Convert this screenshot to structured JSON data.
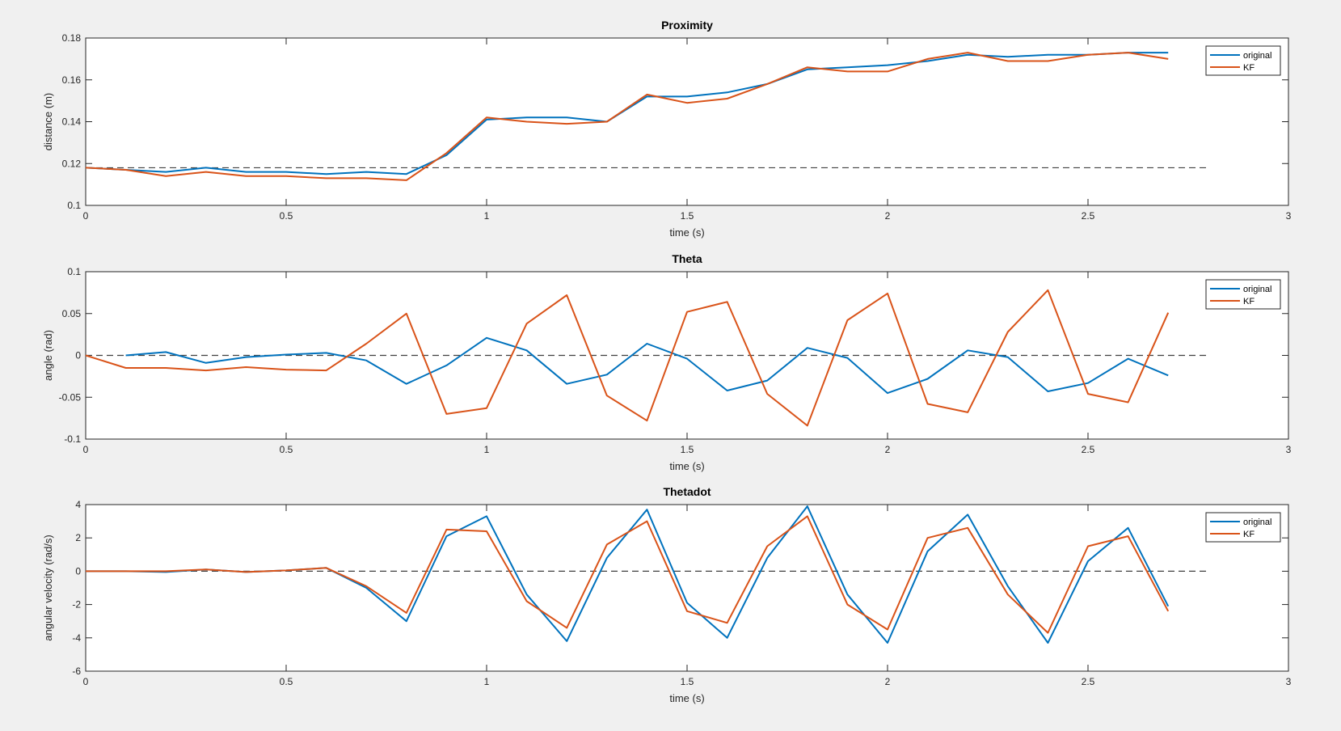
{
  "chart_data": [
    {
      "type": "line",
      "title": "Proximity",
      "xlabel": "time (s)",
      "ylabel": "distance (m)",
      "xlim": [
        0,
        3
      ],
      "ylim": [
        0.1,
        0.18
      ],
      "xticks": [
        "0",
        "0.5",
        "1",
        "1.5",
        "2",
        "2.5",
        "3"
      ],
      "yticks": [
        "0.1",
        "0.12",
        "0.14",
        "0.16",
        "0.18"
      ],
      "grid": false,
      "legend_position": "top-right",
      "reference_line": {
        "y": 0.118,
        "x_range": [
          0,
          2.8
        ],
        "style": "dashed",
        "color": "#404040"
      },
      "series": [
        {
          "name": "original",
          "color": "#0072bd",
          "x": [
            0,
            0.1,
            0.2,
            0.3,
            0.4,
            0.5,
            0.6,
            0.7,
            0.8,
            0.9,
            1.0,
            1.1,
            1.2,
            1.3,
            1.4,
            1.5,
            1.6,
            1.7,
            1.8,
            1.9,
            2.0,
            2.1,
            2.2,
            2.3,
            2.4,
            2.5,
            2.6,
            2.7
          ],
          "y": [
            0.118,
            0.117,
            0.116,
            0.118,
            0.116,
            0.116,
            0.115,
            0.116,
            0.115,
            0.124,
            0.141,
            0.142,
            0.142,
            0.14,
            0.152,
            0.152,
            0.154,
            0.158,
            0.165,
            0.166,
            0.167,
            0.169,
            0.172,
            0.171,
            0.172,
            0.172,
            0.173,
            0.173
          ]
        },
        {
          "name": "KF",
          "color": "#d95319",
          "x": [
            0,
            0.1,
            0.2,
            0.3,
            0.4,
            0.5,
            0.6,
            0.7,
            0.8,
            0.9,
            1.0,
            1.1,
            1.2,
            1.3,
            1.4,
            1.5,
            1.6,
            1.7,
            1.8,
            1.9,
            2.0,
            2.1,
            2.2,
            2.3,
            2.4,
            2.5,
            2.6,
            2.7
          ],
          "y": [
            0.118,
            0.117,
            0.114,
            0.116,
            0.114,
            0.114,
            0.113,
            0.113,
            0.112,
            0.125,
            0.142,
            0.14,
            0.139,
            0.14,
            0.153,
            0.149,
            0.151,
            0.158,
            0.166,
            0.164,
            0.164,
            0.17,
            0.173,
            0.169,
            0.169,
            0.172,
            0.173,
            0.17
          ]
        }
      ]
    },
    {
      "type": "line",
      "title": "Theta",
      "xlabel": "time (s)",
      "ylabel": "angle (rad)",
      "xlim": [
        0,
        3
      ],
      "ylim": [
        -0.1,
        0.1
      ],
      "xticks": [
        "0",
        "0.5",
        "1",
        "1.5",
        "2",
        "2.5",
        "3"
      ],
      "yticks": [
        "-0.1",
        "-0.05",
        "0",
        "0.05",
        "0.1"
      ],
      "grid": false,
      "legend_position": "top-right",
      "reference_line": {
        "y": 0,
        "x_range": [
          0,
          2.8
        ],
        "style": "dashed",
        "color": "#404040"
      },
      "series": [
        {
          "name": "original",
          "color": "#0072bd",
          "x": [
            0.1,
            0.2,
            0.3,
            0.4,
            0.5,
            0.6,
            0.7,
            0.8,
            0.9,
            1.0,
            1.1,
            1.2,
            1.3,
            1.4,
            1.5,
            1.6,
            1.7,
            1.8,
            1.9,
            2.0,
            2.1,
            2.2,
            2.3,
            2.4,
            2.5,
            2.6,
            2.7
          ],
          "y": [
            0,
            0.004,
            -0.009,
            -0.002,
            0.001,
            0.003,
            -0.006,
            -0.034,
            -0.012,
            0.021,
            0.006,
            -0.034,
            -0.023,
            0.014,
            -0.004,
            -0.042,
            -0.03,
            0.009,
            -0.003,
            -0.045,
            -0.028,
            0.006,
            -0.002,
            -0.043,
            -0.033,
            -0.004,
            -0.024
          ]
        },
        {
          "name": "KF",
          "color": "#d95319",
          "x": [
            0,
            0.1,
            0.2,
            0.3,
            0.4,
            0.5,
            0.6,
            0.7,
            0.8,
            0.9,
            1.0,
            1.1,
            1.2,
            1.3,
            1.4,
            1.5,
            1.6,
            1.7,
            1.8,
            1.9,
            2.0,
            2.1,
            2.2,
            2.3,
            2.4,
            2.5,
            2.6,
            2.7
          ],
          "y": [
            0,
            -0.015,
            -0.015,
            -0.018,
            -0.014,
            -0.017,
            -0.018,
            0.014,
            0.05,
            -0.07,
            -0.063,
            0.038,
            0.072,
            -0.048,
            -0.078,
            0.052,
            0.064,
            -0.046,
            -0.084,
            0.042,
            0.074,
            -0.058,
            -0.068,
            0.028,
            0.078,
            -0.046,
            -0.056,
            0.051
          ]
        }
      ]
    },
    {
      "type": "line",
      "title": "Thetadot",
      "xlabel": "time (s)",
      "ylabel": "angular velocity (rad/s)",
      "xlim": [
        0,
        3
      ],
      "ylim": [
        -6,
        4
      ],
      "xticks": [
        "0",
        "0.5",
        "1",
        "1.5",
        "2",
        "2.5",
        "3"
      ],
      "yticks": [
        "-6",
        "-4",
        "-2",
        "0",
        "2",
        "4"
      ],
      "grid": false,
      "legend_position": "top-right",
      "reference_line": {
        "y": 0,
        "x_range": [
          0,
          2.8
        ],
        "style": "dashed",
        "color": "#404040"
      },
      "series": [
        {
          "name": "original",
          "color": "#0072bd",
          "x": [
            0,
            0.1,
            0.2,
            0.3,
            0.4,
            0.5,
            0.6,
            0.7,
            0.8,
            0.9,
            1.0,
            1.1,
            1.2,
            1.3,
            1.4,
            1.5,
            1.6,
            1.7,
            1.8,
            1.9,
            2.0,
            2.1,
            2.2,
            2.3,
            2.4,
            2.5,
            2.6,
            2.7
          ],
          "y": [
            0,
            0,
            -0.05,
            0.1,
            -0.05,
            0.05,
            0.2,
            -1.0,
            -3.0,
            2.1,
            3.3,
            -1.4,
            -4.2,
            0.8,
            3.7,
            -1.9,
            -4.0,
            0.8,
            3.9,
            -1.4,
            -4.3,
            1.2,
            3.4,
            -0.9,
            -4.3,
            0.6,
            2.6,
            -2.1
          ]
        },
        {
          "name": "KF",
          "color": "#d95319",
          "x": [
            0,
            0.1,
            0.2,
            0.3,
            0.4,
            0.5,
            0.6,
            0.7,
            0.8,
            0.9,
            1.0,
            1.1,
            1.2,
            1.3,
            1.4,
            1.5,
            1.6,
            1.7,
            1.8,
            1.9,
            2.0,
            2.1,
            2.2,
            2.3,
            2.4,
            2.5,
            2.6,
            2.7
          ],
          "y": [
            0,
            0,
            0,
            0.1,
            -0.05,
            0.05,
            0.2,
            -0.9,
            -2.5,
            2.5,
            2.4,
            -1.8,
            -3.4,
            1.6,
            3.0,
            -2.4,
            -3.1,
            1.5,
            3.3,
            -2.0,
            -3.5,
            2.0,
            2.6,
            -1.4,
            -3.7,
            1.5,
            2.1,
            -2.4
          ]
        }
      ]
    }
  ]
}
